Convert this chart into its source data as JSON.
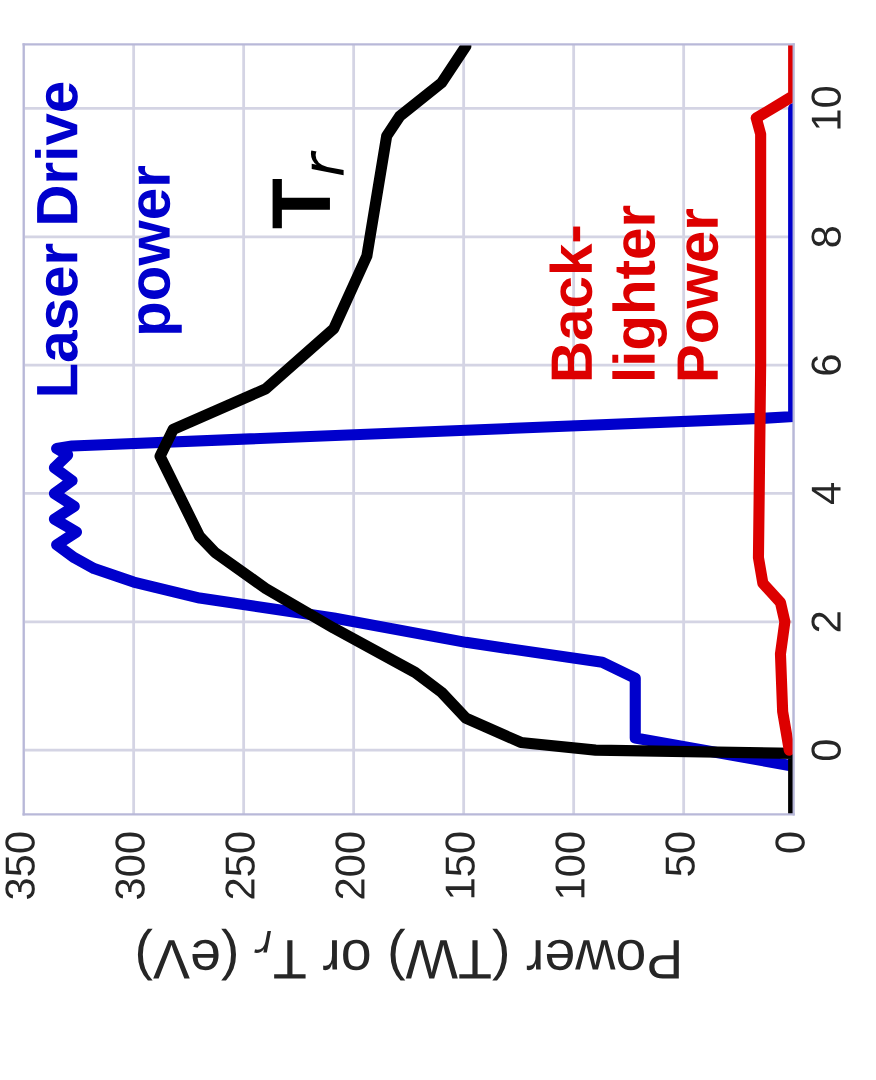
{
  "chart_data": {
    "type": "line",
    "xlabel": "Power (TW) or T$_{r}$ (eV)",
    "xlim": [
      350,
      0
    ],
    "xticks": [
      350,
      300,
      250,
      200,
      150,
      100,
      50,
      0
    ],
    "ylim": [
      -1,
      11
    ],
    "yticks": [
      0,
      2,
      4,
      6,
      8,
      10
    ],
    "grid": true,
    "legend": false,
    "line_style": "solid",
    "marker": "none",
    "series": [
      {
        "name": "Laser Drive power",
        "color": "#0000cc",
        "x": [
          0,
          72,
          72,
          87,
          149,
          209,
          270,
          300,
          318,
          327,
          335,
          326,
          336,
          327,
          336,
          328,
          336,
          330,
          335,
          328,
          15,
          0,
          0
        ],
        "values": [
          -0.25,
          0.19,
          1.12,
          1.37,
          1.68,
          2.06,
          2.37,
          2.62,
          2.83,
          3.0,
          3.2,
          3.4,
          3.6,
          3.8,
          4.0,
          4.2,
          4.4,
          4.6,
          4.7,
          4.74,
          5.17,
          5.2,
          10
        ]
      },
      {
        "name": "T$_{r}$",
        "color": "#000000",
        "x": [
          0,
          0,
          90,
          124,
          149,
          160,
          172,
          209,
          240,
          263,
          270,
          288,
          282,
          240,
          209,
          194,
          185,
          179,
          160,
          149
        ],
        "values": [
          -1,
          -0.05,
          0.0,
          0.12,
          0.5,
          0.9,
          1.21,
          1.9,
          2.52,
          3.08,
          3.33,
          4.58,
          5.0,
          5.63,
          6.57,
          7.7,
          9.57,
          9.88,
          10.4,
          10.97
        ]
      },
      {
        "name": "Back-\nlighter\nPower",
        "color": "#dd0000",
        "x": [
          2,
          5,
          6,
          4,
          6,
          14,
          16,
          15,
          15,
          17,
          0,
          0
        ],
        "values": [
          0,
          0.6,
          1.5,
          2.0,
          2.3,
          2.6,
          3.0,
          6.0,
          9.6,
          9.85,
          10.2,
          11
        ]
      }
    ]
  }
}
